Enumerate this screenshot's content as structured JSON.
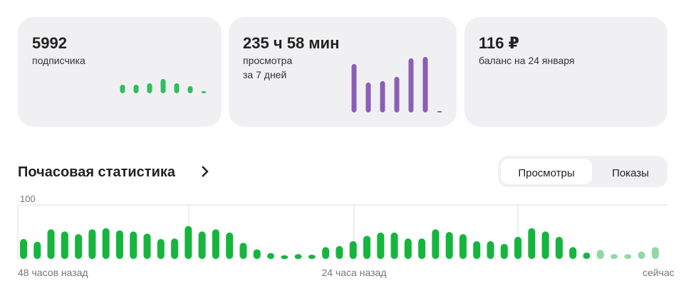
{
  "cards": [
    {
      "value": "5992",
      "label": "подписчика"
    },
    {
      "value": "235 ч 58 мин",
      "label": "просмотра",
      "sublabel": "за 7 дней"
    },
    {
      "value": "116 ₽",
      "label": "баланс на 24 января"
    }
  ],
  "section_title": "Почасовая статистика",
  "tabs": [
    {
      "label": "Просмотры",
      "selected": true
    },
    {
      "label": "Показы",
      "selected": false
    }
  ],
  "x_labels": [
    "48 часов назад",
    "24 часа назад",
    "сейчас"
  ],
  "chart_data": [
    {
      "type": "bar",
      "color": "#2fbe5e",
      "values": [
        12,
        12,
        14,
        20,
        14,
        10,
        3
      ]
    },
    {
      "type": "bar",
      "color": "#8a5fb5",
      "values": [
        68,
        42,
        44,
        50,
        76,
        78,
        2
      ]
    },
    {
      "type": "bar",
      "ylim": [
        0,
        100
      ],
      "yticks": [
        0,
        100
      ],
      "grid": true,
      "series": [
        {
          "color": "#16b53e",
          "values": [
            37,
            32,
            55,
            51,
            46,
            55,
            57,
            53,
            51,
            47,
            37,
            38,
            61,
            51,
            55,
            49,
            30,
            18,
            11,
            7,
            9,
            8,
            22,
            24,
            33,
            43,
            49,
            49,
            38,
            38,
            55,
            50,
            46,
            33,
            33,
            28,
            41,
            57,
            51,
            41,
            22,
            12,
            null,
            null,
            null,
            null,
            null
          ]
        },
        {
          "color": "#8fd9a4",
          "values": [
            null,
            null,
            null,
            null,
            null,
            null,
            null,
            null,
            null,
            null,
            null,
            null,
            null,
            null,
            null,
            null,
            null,
            null,
            null,
            null,
            null,
            null,
            null,
            null,
            null,
            null,
            null,
            null,
            null,
            null,
            null,
            null,
            null,
            null,
            null,
            null,
            null,
            null,
            null,
            null,
            null,
            null,
            17,
            9,
            9,
            14,
            22
          ]
        }
      ]
    }
  ]
}
